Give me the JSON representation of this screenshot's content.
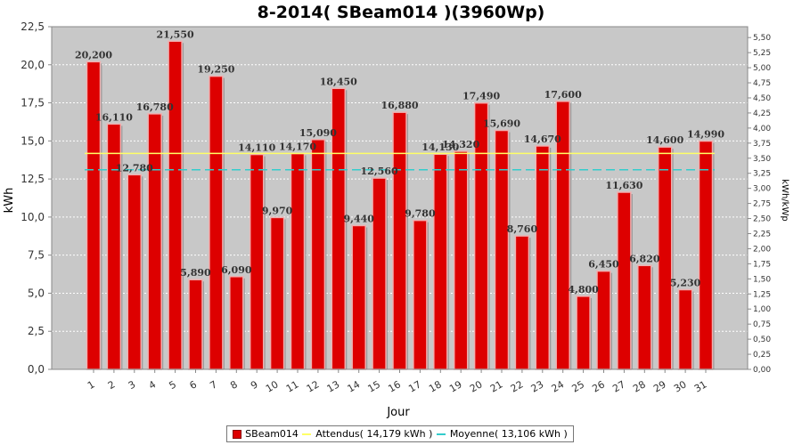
{
  "chart_data": {
    "type": "bar",
    "title": "8-2014( SBeam014 )(3960Wp)",
    "xlabel": "Jour",
    "ylabel": "kWh",
    "ylabel_right": "kWh/kWp",
    "ylim": [
      0,
      22.5
    ],
    "ylim_right": [
      0,
      5.68
    ],
    "y_ticks": [
      "0,0",
      "2,5",
      "5,0",
      "7,5",
      "10,0",
      "12,5",
      "15,0",
      "17,5",
      "20,0",
      "22,5"
    ],
    "y_right_ticks": [
      "0,00",
      "0,25",
      "0,50",
      "0,75",
      "1,00",
      "1,25",
      "1,50",
      "1,75",
      "2,00",
      "2,25",
      "2,50",
      "2,75",
      "3,00",
      "3,25",
      "3,50",
      "3,75",
      "4,00",
      "4,25",
      "4,50",
      "4,75",
      "5,00",
      "5,25",
      "5,50"
    ],
    "categories": [
      "1",
      "2",
      "3",
      "4",
      "5",
      "6",
      "7",
      "8",
      "9",
      "10",
      "11",
      "12",
      "13",
      "14",
      "15",
      "16",
      "17",
      "18",
      "19",
      "20",
      "21",
      "22",
      "23",
      "24",
      "25",
      "26",
      "27",
      "28",
      "29",
      "30",
      "31"
    ],
    "series": [
      {
        "name": "SBeam014",
        "color": "#dd0000",
        "values": [
          20.2,
          16.11,
          12.78,
          16.78,
          21.55,
          5.89,
          19.25,
          6.09,
          14.11,
          9.97,
          14.17,
          15.09,
          18.45,
          9.44,
          12.56,
          16.88,
          9.78,
          14.13,
          14.32,
          17.49,
          15.69,
          8.76,
          14.67,
          17.6,
          4.8,
          6.45,
          11.63,
          6.82,
          14.6,
          5.23,
          14.99
        ],
        "labels": [
          "20,200",
          "16,110",
          "12,780",
          "16,780",
          "21,550",
          "5,890",
          "19,250",
          "6,090",
          "14,110",
          "9,970",
          "14,170",
          "15,090",
          "18,450",
          "9,440",
          "12,560",
          "16,880",
          "9,780",
          "14,130",
          "14,320",
          "17,490",
          "15,690",
          "8,760",
          "14,670",
          "17,600",
          "4,800",
          "6,450",
          "11,630",
          "6,820",
          "14,600",
          "5,230",
          "14,990"
        ]
      }
    ],
    "reference_lines": [
      {
        "name": "Attendus( 14,179 kWh )",
        "value": 14.179,
        "color": "#ffff66"
      },
      {
        "name": "Moyenne( 13,106 kWh )",
        "value": 13.106,
        "color": "#33cccc"
      }
    ],
    "grid": true,
    "legend_position": "bottom"
  }
}
